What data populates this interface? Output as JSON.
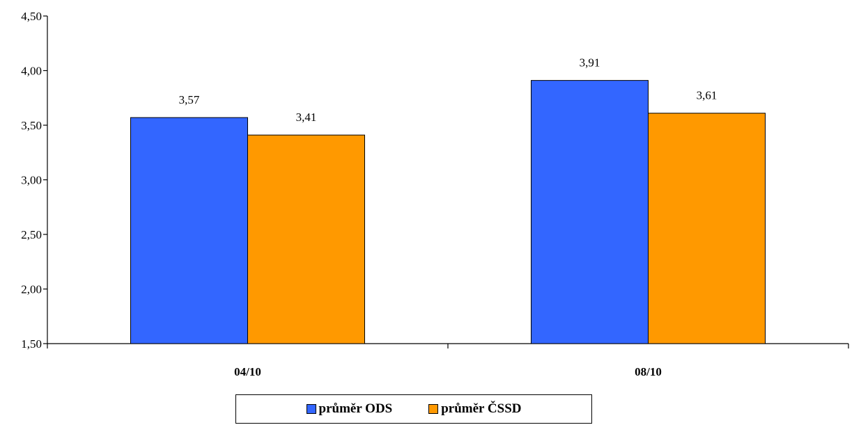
{
  "chart_data": {
    "type": "bar",
    "categories": [
      "04/10",
      "08/10"
    ],
    "series": [
      {
        "name": "průměr ODS",
        "values": [
          3.57,
          3.91
        ],
        "labels": [
          "3,57",
          "3,91"
        ],
        "color": "#3366ff"
      },
      {
        "name": "průměr ČSSD",
        "values": [
          3.41,
          3.61
        ],
        "labels": [
          "3,41",
          "3,61"
        ],
        "color": "#ff9900"
      }
    ],
    "ylim": [
      1.5,
      4.5
    ],
    "yticks": [
      1.5,
      2.0,
      2.5,
      3.0,
      3.5,
      4.0,
      4.5
    ],
    "ytick_labels": [
      "1,50",
      "2,00",
      "2,50",
      "3,00",
      "3,50",
      "4,00",
      "4,50"
    ],
    "grid": false,
    "legend_position": "bottom"
  }
}
